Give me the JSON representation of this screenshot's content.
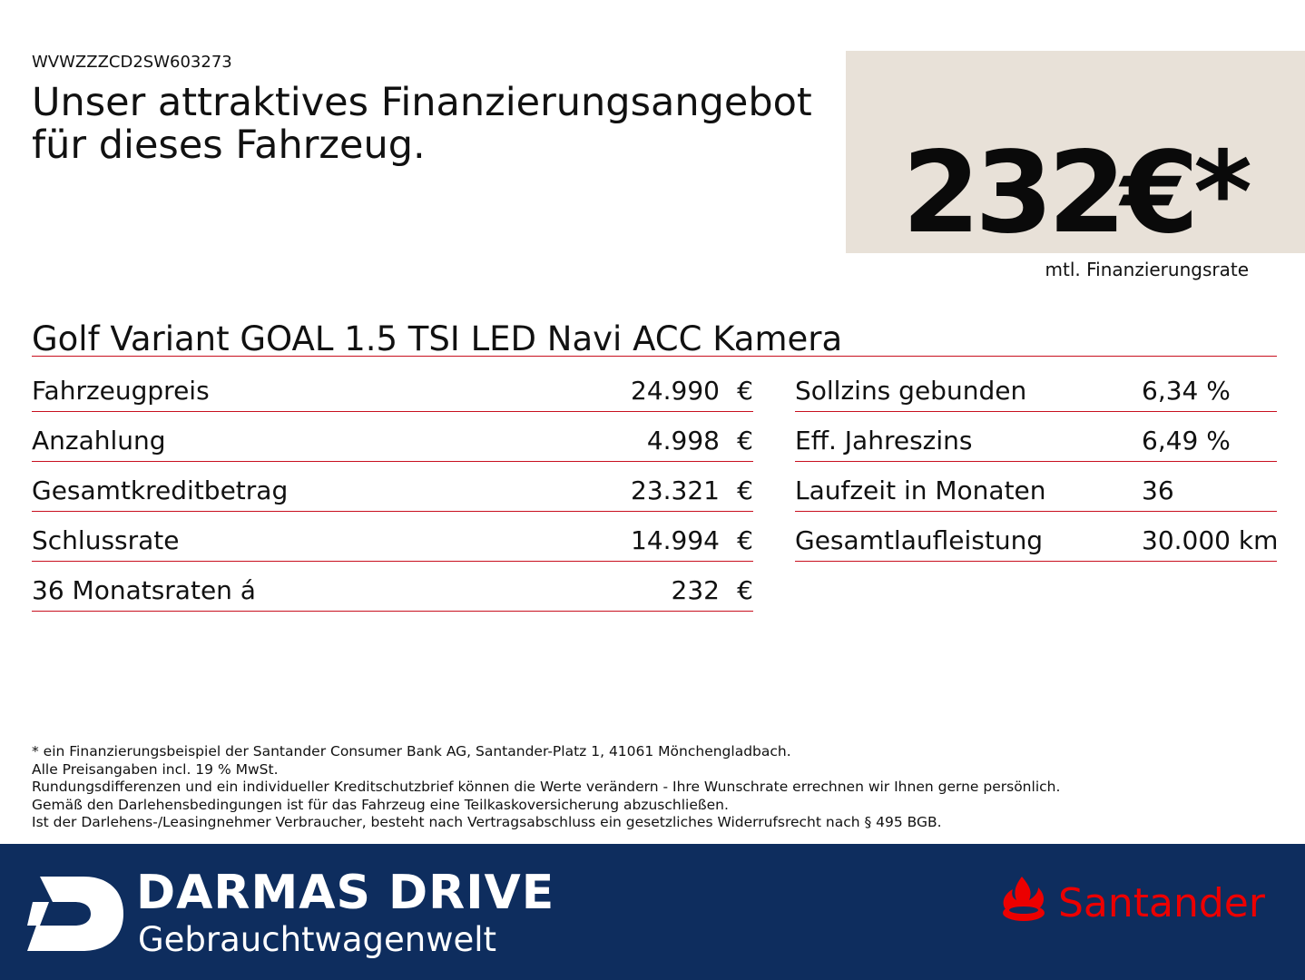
{
  "vin": "WVWZZZCD2SW603273",
  "headline": {
    "line1": "Unser attraktives Finanzierungsangebot",
    "line2": "für dieses Fahrzeug."
  },
  "price": {
    "amount": "232€*",
    "caption": "mtl. Finanzierungsrate",
    "box_color": "#e8e1d8"
  },
  "model_title": "Golf Variant GOAL 1.5 TSI LED Navi ACC Kamera",
  "left_rows": [
    {
      "label": "Fahrzeugpreis",
      "value": "24.990",
      "currency": "€"
    },
    {
      "label": "Anzahlung",
      "value": "4.998",
      "currency": "€"
    },
    {
      "label": "Gesamtkreditbetrag",
      "value": "23.321",
      "currency": "€"
    },
    {
      "label": "Schlussrate",
      "value": "14.994",
      "currency": "€"
    },
    {
      "label": "36 Monatsraten á",
      "value": "232",
      "currency": "€"
    }
  ],
  "right_rows": [
    {
      "label": "Sollzins gebunden",
      "value": "6,34 %"
    },
    {
      "label": "Eff. Jahreszins",
      "value": "6,49 %"
    },
    {
      "label": "Laufzeit in Monaten",
      "value": "36"
    },
    {
      "label": "Gesamtlaufleistung",
      "value": "30.000 km"
    }
  ],
  "footnotes": [
    "* ein Finanzierungsbeispiel der Santander Consumer Bank AG, Santander-Platz 1, 41061 Mönchengladbach.",
    "Alle Preisangaben incl. 19 % MwSt.",
    "Rundungsdifferenzen und ein individueller Kreditschutzbrief können die Werte verändern - Ihre Wunschrate errechnen wir Ihnen gerne persönlich.",
    "Gemäß den Darlehensbedingungen ist für das Fahrzeug eine Teilkaskoversicherung abzuschließen.",
    "Ist der Darlehens-/Leasingnehmer Verbraucher, besteht nach Vertragsabschluss ein gesetzliches Widerrufsrecht nach § 495 BGB."
  ],
  "footer": {
    "brand_name": "DARMAS DRIVE",
    "brand_tagline": "Gebrauchtwagenwelt",
    "partner_logo_text": "Santander",
    "background_color": "#0e2d5e",
    "partner_color": "#ec0000"
  },
  "accent_color": "#c8101f"
}
